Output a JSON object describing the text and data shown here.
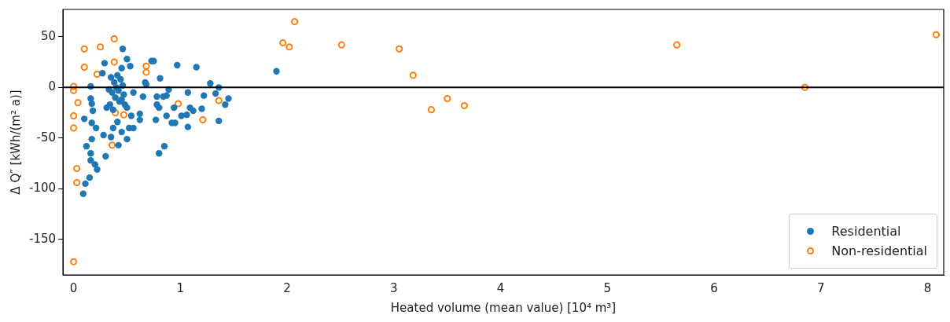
{
  "chart_data": {
    "type": "scatter",
    "xlabel": "Heated volume (mean value) [10⁴ m³]",
    "ylabel": "Δ Q″ [kWh/(m² a)]",
    "xlim": [
      -0.1,
      8.15
    ],
    "ylim": [
      -185,
      77
    ],
    "xticks": [
      0,
      1,
      2,
      3,
      4,
      5,
      6,
      7,
      8
    ],
    "yticks": [
      -150,
      -100,
      -50,
      0,
      50
    ],
    "grid": false,
    "legend": "bottom right",
    "marker": "circle",
    "ref_lines": [
      {
        "axis": "y",
        "value": 0,
        "color": "#000000"
      }
    ],
    "series": [
      {
        "name": "Residential",
        "color": "#1f77b4",
        "x": [
          0.46,
          0.29,
          0.5,
          0.53,
          0.45,
          0.27,
          0.16,
          0.16,
          0.17,
          0.18,
          0.1,
          0.17,
          0.21,
          0.28,
          0.35,
          0.42,
          0.5,
          0.17,
          0.12,
          0.16,
          0.16,
          0.2,
          0.22,
          0.3,
          0.15,
          0.11,
          0.09,
          0.56,
          0.48,
          0.5,
          0.62,
          0.62,
          0.54,
          0.52,
          0.56,
          0.45,
          0.37,
          0.41,
          0.67,
          0.65,
          0.73,
          0.35,
          0.38,
          0.4,
          0.42,
          0.36,
          0.44,
          0.46,
          0.39,
          0.43,
          0.34,
          0.31,
          0.37,
          0.45,
          0.41,
          0.47,
          0.33,
          0.75,
          0.97,
          1.15,
          0.81,
          0.68,
          1.28,
          1.36,
          0.89,
          1.07,
          1.33,
          0.78,
          0.84,
          0.87,
          1.22,
          1.45,
          1.42,
          0.78,
          0.8,
          0.94,
          1.09,
          1.12,
          1.2,
          0.87,
          1.01,
          1.06,
          0.77,
          0.92,
          0.95,
          1.07,
          1.36,
          0.85,
          0.8,
          1.9
        ],
        "values": [
          38,
          24,
          28,
          21,
          19,
          14,
          1,
          -11,
          -16,
          -23,
          -31,
          -35,
          -40,
          -47,
          -49,
          -57,
          -51,
          -51,
          -58,
          -65,
          -72,
          -76,
          -81,
          -68,
          -89,
          -95,
          -105,
          -5,
          -17,
          -20,
          -26,
          -32,
          -28,
          -40,
          -40,
          -44,
          -40,
          -34,
          5,
          -9,
          26,
          10,
          5,
          0,
          -3,
          -5,
          8,
          2,
          -10,
          -14,
          -17,
          -20,
          -22,
          -12,
          12,
          -7,
          -2,
          26,
          22,
          20,
          9,
          3,
          4,
          0,
          -2,
          -5,
          -6,
          -9,
          -9,
          -8,
          -8,
          -11,
          -17,
          -17,
          -20,
          -20,
          -20,
          -23,
          -21,
          -28,
          -28,
          -27,
          -32,
          -35,
          -35,
          -39,
          -33,
          -58,
          -65,
          16
        ]
      },
      {
        "name": "Non-residential",
        "color": "#ff7f0e",
        "x": [
          0.0,
          0.0,
          0.0,
          0.04,
          0.0,
          0.0,
          0.03,
          0.03,
          0.1,
          0.1,
          0.25,
          0.22,
          0.38,
          0.38,
          0.39,
          0.36,
          0.47,
          0.68,
          0.68,
          0.98,
          1.21,
          1.36,
          1.96,
          2.02,
          2.07,
          2.51,
          3.05,
          3.18,
          3.35,
          3.5,
          3.66,
          5.65,
          6.85,
          8.08
        ],
        "values": [
          -172,
          1,
          -3,
          -15,
          -28,
          -40,
          -80,
          -94,
          20,
          38,
          40,
          13,
          48,
          25,
          -25,
          -57,
          -27,
          21,
          15,
          -16,
          -32,
          -13,
          44,
          40,
          65,
          42,
          38,
          12,
          -22,
          -11,
          -18,
          42,
          0,
          52
        ]
      }
    ]
  }
}
